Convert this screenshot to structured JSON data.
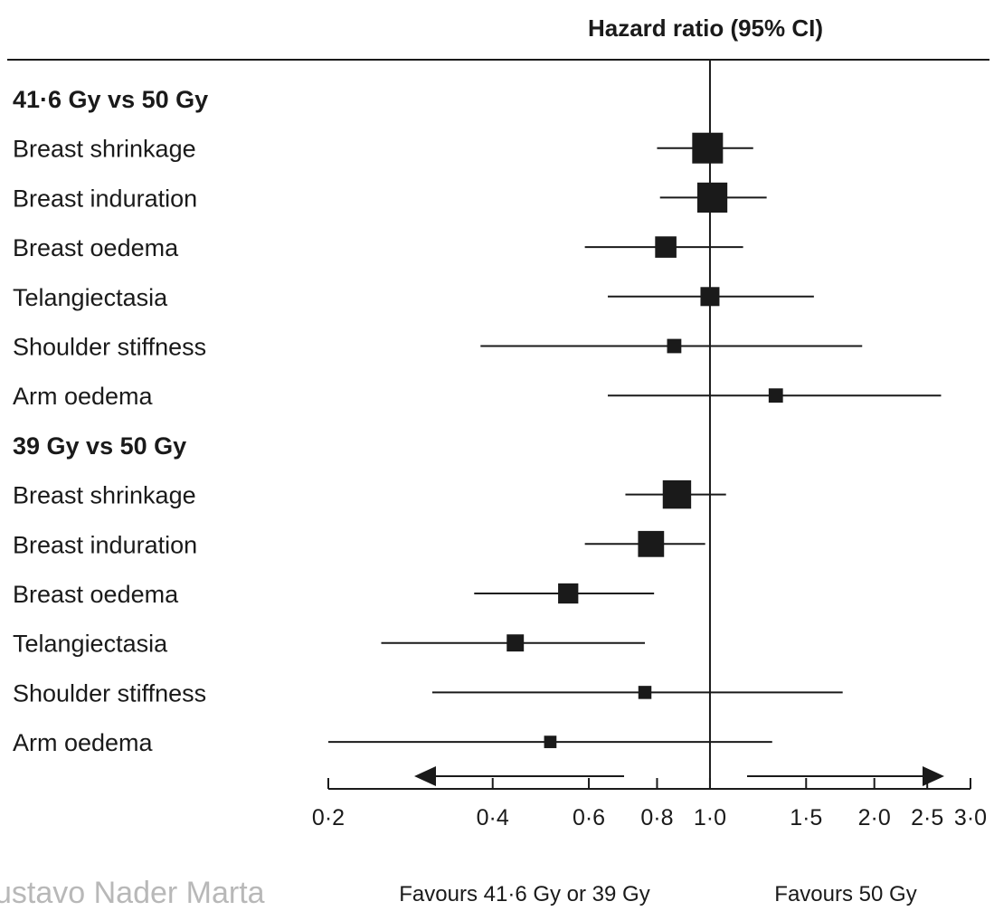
{
  "chart_data": {
    "type": "forest",
    "title": "Hazard ratio (95% CI)",
    "x_scale": "log",
    "xlim": [
      0.2,
      3.0
    ],
    "reference_line": 1.0,
    "x_ticks": [
      {
        "value": 0.2,
        "label": "0·2"
      },
      {
        "value": 0.4,
        "label": "0·4"
      },
      {
        "value": 0.6,
        "label": "0·6"
      },
      {
        "value": 0.8,
        "label": "0·8"
      },
      {
        "value": 1.0,
        "label": "1·0"
      },
      {
        "value": 1.5,
        "label": "1·5"
      },
      {
        "value": 2.0,
        "label": "2·0"
      },
      {
        "value": 2.5,
        "label": "2·5"
      },
      {
        "value": 3.0,
        "label": "3·0"
      }
    ],
    "groups": [
      {
        "label": "41·6 Gy vs 50 Gy",
        "rows": [
          {
            "label": "Breast shrinkage",
            "hr": 0.99,
            "lower": 0.8,
            "upper": 1.2,
            "weight": 1.0
          },
          {
            "label": "Breast induration",
            "hr": 1.01,
            "lower": 0.81,
            "upper": 1.27,
            "weight": 0.97
          },
          {
            "label": "Breast oedema",
            "hr": 0.83,
            "lower": 0.59,
            "upper": 1.15,
            "weight": 0.6
          },
          {
            "label": "Telangiectasia",
            "hr": 1.0,
            "lower": 0.65,
            "upper": 1.55,
            "weight": 0.5
          },
          {
            "label": "Shoulder stiffness",
            "hr": 0.86,
            "lower": 0.38,
            "upper": 1.9,
            "weight": 0.3
          },
          {
            "label": "Arm oedema",
            "hr": 1.32,
            "lower": 0.65,
            "upper": 2.65,
            "weight": 0.3
          }
        ]
      },
      {
        "label": "39 Gy vs 50 Gy",
        "rows": [
          {
            "label": "Breast shrinkage",
            "hr": 0.87,
            "lower": 0.7,
            "upper": 1.07,
            "weight": 0.9
          },
          {
            "label": "Breast induration",
            "hr": 0.78,
            "lower": 0.59,
            "upper": 0.98,
            "weight": 0.8
          },
          {
            "label": "Breast oedema",
            "hr": 0.55,
            "lower": 0.37,
            "upper": 0.79,
            "weight": 0.55
          },
          {
            "label": "Telangiectasia",
            "hr": 0.44,
            "lower": 0.25,
            "upper": 0.76,
            "weight": 0.42
          },
          {
            "label": "Shoulder stiffness",
            "hr": 0.76,
            "lower": 0.31,
            "upper": 1.75,
            "weight": 0.25
          },
          {
            "label": "Arm oedema",
            "hr": 0.51,
            "lower": 0.2,
            "upper": 1.3,
            "weight": 0.22
          }
        ]
      }
    ],
    "favours_left": "Favours 41·6 Gy or 39 Gy",
    "favours_right": "Favours 50 Gy"
  },
  "watermark": "ustavo Nader Marta"
}
